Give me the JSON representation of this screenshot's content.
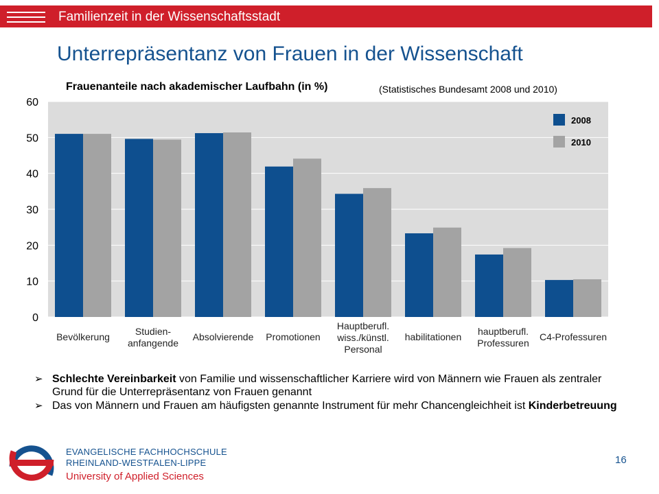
{
  "header": {
    "title": "Familienzeit in der Wissenschaftsstadt"
  },
  "slide_title": "Unterrepräsentanz von Frauen in der Wissenschaft",
  "chart_heading": {
    "title": "Frauenanteile nach akademischer Laufbahn (in %)",
    "source": "(Statistisches Bundesamt 2008 und 2010)"
  },
  "chart_data": {
    "type": "bar",
    "categories": [
      [
        "Bevölkerung"
      ],
      [
        "Studien-",
        "anfangende"
      ],
      [
        "Absolvierende"
      ],
      [
        "Promotionen"
      ],
      [
        "Hauptberufl.",
        "wiss./künstl.",
        "Personal"
      ],
      [
        "habilitationen"
      ],
      [
        "hauptberufl.",
        "Professuren"
      ],
      [
        "C4-Professuren"
      ]
    ],
    "series": [
      {
        "name": "2008",
        "color": "#0e4f8f",
        "values": [
          51,
          49.6,
          51.2,
          41.9,
          34.3,
          23.3,
          17.4,
          10.3
        ]
      },
      {
        "name": "2010",
        "color": "#a3a3a3",
        "values": [
          51,
          49.4,
          51.4,
          44.1,
          35.9,
          24.9,
          19.2,
          10.5
        ]
      }
    ],
    "ylim": [
      0,
      60
    ],
    "yticks": [
      0,
      10,
      20,
      30,
      40,
      50,
      60
    ],
    "grid": true,
    "legend": "top-right",
    "plot_background": "#dcdcdc"
  },
  "bullets": [
    {
      "bold": "Schlechte Vereinbarkeit",
      "text": " von Familie und wissenschaftlicher Karriere wird von Männern wie Frauen als zentraler Grund für die Unterrepräsentanz von Frauen genannt"
    },
    {
      "text": "Das von Männern und Frauen am häufigsten genannte Instrument für mehr Chancengleichheit ist ",
      "bold": "Kinderbetreuung"
    }
  ],
  "footer": {
    "org_line1": "EVANGELISCHE FACHHOCHSCHULE",
    "org_line2": "RHEINLAND-WESTFALEN-LIPPE",
    "org_line3": "University of Applied Sciences",
    "page_number": "16"
  }
}
